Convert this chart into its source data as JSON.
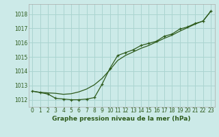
{
  "title": "Graphe pression niveau de la mer (hPa)",
  "bg_color": "#cceae8",
  "grid_color": "#aad4d0",
  "line_color": "#2d5a1b",
  "spine_color": "#aaaaaa",
  "xlim": [
    -0.5,
    23.5
  ],
  "ylim": [
    1011.5,
    1018.7
  ],
  "yticks": [
    1012,
    1013,
    1014,
    1015,
    1016,
    1017,
    1018
  ],
  "xticks": [
    0,
    1,
    2,
    3,
    4,
    5,
    6,
    7,
    8,
    9,
    10,
    11,
    12,
    13,
    14,
    15,
    16,
    17,
    18,
    19,
    20,
    21,
    22,
    23
  ],
  "hours": [
    0,
    1,
    2,
    3,
    4,
    5,
    6,
    7,
    8,
    9,
    10,
    11,
    12,
    13,
    14,
    15,
    16,
    17,
    18,
    19,
    20,
    21,
    22,
    23
  ],
  "pressure_main": [
    1012.6,
    1012.5,
    1012.4,
    1012.1,
    1012.05,
    1012.0,
    1012.0,
    1012.05,
    1012.15,
    1013.1,
    1014.2,
    1015.1,
    1015.3,
    1015.5,
    1015.8,
    1015.95,
    1016.1,
    1016.45,
    1016.6,
    1016.95,
    1017.1,
    1017.35,
    1017.5,
    1018.2
  ],
  "pressure_smooth": [
    1012.6,
    1012.52,
    1012.48,
    1012.45,
    1012.38,
    1012.42,
    1012.55,
    1012.75,
    1013.05,
    1013.5,
    1014.1,
    1014.75,
    1015.1,
    1015.35,
    1015.6,
    1015.8,
    1016.05,
    1016.3,
    1016.52,
    1016.8,
    1017.05,
    1017.3,
    1017.52,
    1018.2
  ],
  "tick_fontsize": 5.5,
  "label_fontsize": 6.5
}
